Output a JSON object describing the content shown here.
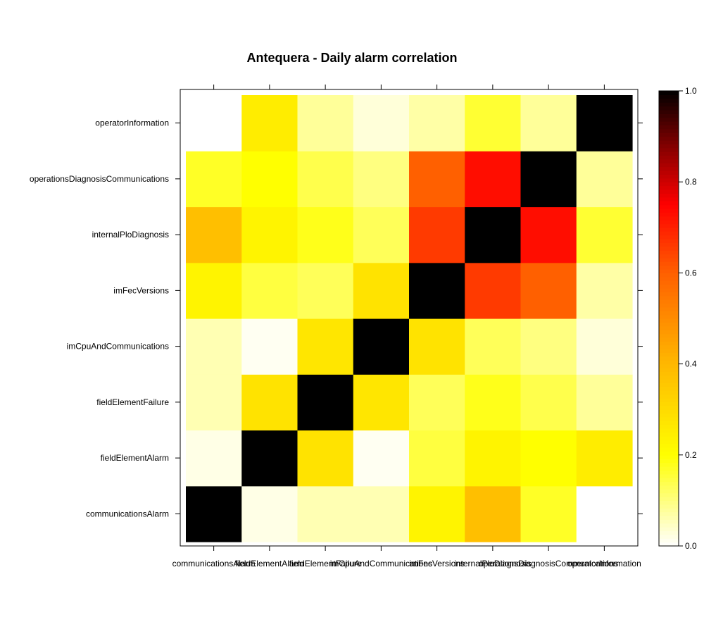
{
  "chart_data": {
    "type": "heatmap",
    "title": "Antequera - Daily alarm correlation",
    "xlabel": "",
    "ylabel": "",
    "categories": [
      "communicationsAlarm",
      "fieldElementAlarm",
      "fieldElementFailure",
      "imCpuAndCommunications",
      "imFecVersions",
      "internalPloDiagnosis",
      "operationsDiagnosisCommunications",
      "operatorInformation"
    ],
    "matrix": [
      [
        1.0,
        0.02,
        0.06,
        0.06,
        0.23,
        0.38,
        0.17,
        0.0
      ],
      [
        0.02,
        1.0,
        0.28,
        0.01,
        0.15,
        0.23,
        0.2,
        0.25
      ],
      [
        0.06,
        0.28,
        1.0,
        0.27,
        0.13,
        0.18,
        0.14,
        0.08
      ],
      [
        0.06,
        0.01,
        0.27,
        1.0,
        0.28,
        0.13,
        0.1,
        0.03
      ],
      [
        0.23,
        0.15,
        0.13,
        0.28,
        1.0,
        0.66,
        0.6,
        0.07
      ],
      [
        0.38,
        0.23,
        0.18,
        0.13,
        0.66,
        1.0,
        0.73,
        0.16
      ],
      [
        0.17,
        0.2,
        0.14,
        0.1,
        0.6,
        0.73,
        1.0,
        0.08
      ],
      [
        0.0,
        0.25,
        0.08,
        0.03,
        0.07,
        0.16,
        0.08,
        1.0
      ]
    ],
    "colorbar": {
      "range": [
        0,
        1
      ],
      "ticks": [
        "0.0",
        "0.2",
        "0.4",
        "0.6",
        "0.8",
        "1.0"
      ],
      "palette": "heat (white → yellow → orange → red → black)"
    },
    "grid": false,
    "legend_position": "right"
  }
}
